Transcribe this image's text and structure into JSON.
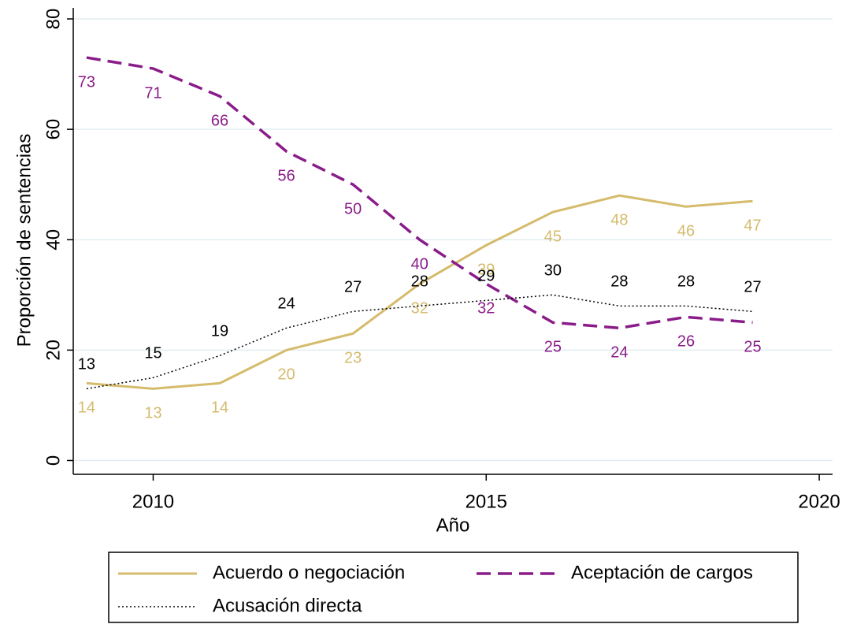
{
  "chart_data": {
    "type": "line",
    "x_label": "Año",
    "y_label": "Proporción de sentencias",
    "x": [
      2009,
      2010,
      2011,
      2012,
      2013,
      2014,
      2015,
      2016,
      2017,
      2018,
      2019
    ],
    "series": [
      {
        "name": "Acuerdo o negociación",
        "color": "#d5bb6c",
        "style": "solid",
        "label_side": "below",
        "values": [
          14,
          13,
          14,
          20,
          23,
          32,
          39,
          45,
          48,
          46,
          47
        ]
      },
      {
        "name": "Aceptación de cargos",
        "color": "#8a1c8a",
        "style": "dashed",
        "label_side": "below",
        "values": [
          73,
          71,
          66,
          56,
          50,
          40,
          32,
          25,
          24,
          26,
          25
        ]
      },
      {
        "name": "Acusación directa",
        "color": "#000000",
        "style": "dotted",
        "label_side": "above",
        "values": [
          13,
          15,
          19,
          24,
          27,
          28,
          29,
          30,
          28,
          28,
          27
        ]
      }
    ],
    "xlim": [
      2008.8,
      2020.2
    ],
    "xticks": [
      2010,
      2015,
      2020
    ],
    "ylim": [
      -2.5,
      82
    ],
    "yticks": [
      0,
      20,
      40,
      60,
      80
    ],
    "grid": true,
    "legend_position": "bottom"
  }
}
